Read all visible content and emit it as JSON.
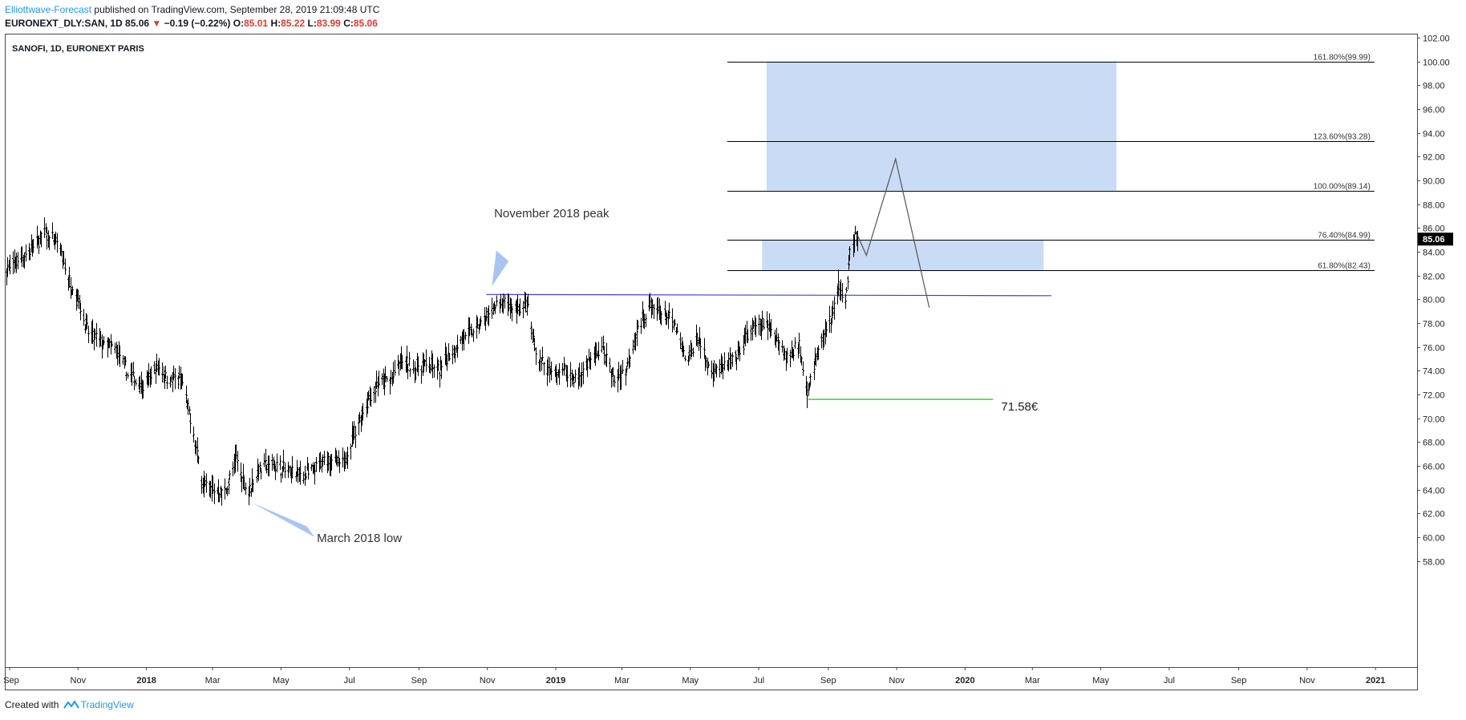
{
  "header": {
    "publisher": "Elliottwave-Forecast",
    "published_text": "published on TradingView.com, September 28, 2019 21:09:48 UTC"
  },
  "symbol_line": {
    "symbol": "EURONEXT_DLY:SAN, 1D",
    "last": "85.06",
    "change": "−0.19 (−0.22%)",
    "open_label": "O:",
    "open": "85.01",
    "high_label": "H:",
    "high": "85.22",
    "low_label": "L:",
    "low": "83.99",
    "close_label": "C:",
    "close": "85.06"
  },
  "footer": {
    "created_with": "Created with",
    "brand": "TradingView"
  },
  "colors": {
    "bars": "#000000",
    "target_box": "#c9dbf5",
    "arrow": "#a9c4ef",
    "resistance": "#3f3fd9",
    "support": "#33d633",
    "fib_line": "#000000",
    "price_tag_bg": "#000000"
  },
  "chart_data": {
    "type": "ohlc",
    "title": "SANOFI, 1D, EURONEXT PARIS",
    "ylim": [
      57,
      103
    ],
    "y_ticks": [
      "102.00",
      "100.00",
      "98.00",
      "96.00",
      "94.00",
      "92.00",
      "90.00",
      "88.00",
      "86.00",
      "84.00",
      "82.00",
      "80.00",
      "78.00",
      "76.00",
      "74.00",
      "72.00",
      "70.00",
      "68.00",
      "66.00",
      "64.00",
      "62.00",
      "60.00",
      "58.00"
    ],
    "x_ticks": [
      {
        "label": "Sep",
        "date": "2017-09-01",
        "bold": false
      },
      {
        "label": "Nov",
        "date": "2017-11-01",
        "bold": false
      },
      {
        "label": "2018",
        "date": "2018-01-01",
        "bold": true
      },
      {
        "label": "Mar",
        "date": "2018-03-01",
        "bold": false
      },
      {
        "label": "May",
        "date": "2018-05-01",
        "bold": false
      },
      {
        "label": "Jul",
        "date": "2018-07-01",
        "bold": false
      },
      {
        "label": "Sep",
        "date": "2018-09-01",
        "bold": false
      },
      {
        "label": "Nov",
        "date": "2018-11-01",
        "bold": false
      },
      {
        "label": "2019",
        "date": "2019-01-01",
        "bold": true
      },
      {
        "label": "Mar",
        "date": "2019-03-01",
        "bold": false
      },
      {
        "label": "May",
        "date": "2019-05-01",
        "bold": false
      },
      {
        "label": "Jul",
        "date": "2019-07-01",
        "bold": false
      },
      {
        "label": "Sep",
        "date": "2019-09-01",
        "bold": false
      },
      {
        "label": "Nov",
        "date": "2019-11-01",
        "bold": false
      },
      {
        "label": "2020",
        "date": "2020-01-01",
        "bold": true
      },
      {
        "label": "Mar",
        "date": "2020-03-01",
        "bold": false
      },
      {
        "label": "May",
        "date": "2020-05-01",
        "bold": false
      },
      {
        "label": "Jul",
        "date": "2020-07-01",
        "bold": false
      },
      {
        "label": "Sep",
        "date": "2020-09-01",
        "bold": false
      },
      {
        "label": "Nov",
        "date": "2020-11-01",
        "bold": false
      },
      {
        "label": "2021",
        "date": "2021-01-01",
        "bold": true
      }
    ],
    "price_path": [
      [
        "2017-08-29",
        82.5
      ],
      [
        "2017-09-08",
        83.2
      ],
      [
        "2017-09-22",
        84.3
      ],
      [
        "2017-10-02",
        85.6
      ],
      [
        "2017-10-14",
        84.7
      ],
      [
        "2017-10-24",
        81.5
      ],
      [
        "2017-10-31",
        80.3
      ],
      [
        "2017-11-10",
        77.2
      ],
      [
        "2017-11-22",
        76.3
      ],
      [
        "2017-12-05",
        75.8
      ],
      [
        "2017-12-15",
        73.8
      ],
      [
        "2017-12-29",
        72.6
      ],
      [
        "2018-01-10",
        74.3
      ],
      [
        "2018-01-22",
        73.2
      ],
      [
        "2018-02-01",
        73.3
      ],
      [
        "2018-02-10",
        69.4
      ],
      [
        "2018-02-20",
        64.5
      ],
      [
        "2018-03-01",
        64.0
      ],
      [
        "2018-03-12",
        63.8
      ],
      [
        "2018-03-22",
        66.6
      ],
      [
        "2018-04-01",
        63.7
      ],
      [
        "2018-04-12",
        65.8
      ],
      [
        "2018-04-24",
        66.2
      ],
      [
        "2018-05-08",
        65.5
      ],
      [
        "2018-05-20",
        65.2
      ],
      [
        "2018-05-30",
        65.6
      ],
      [
        "2018-06-12",
        66.7
      ],
      [
        "2018-06-24",
        65.9
      ],
      [
        "2018-07-03",
        68.2
      ],
      [
        "2018-07-14",
        70.9
      ],
      [
        "2018-07-26",
        72.9
      ],
      [
        "2018-08-06",
        73.1
      ],
      [
        "2018-08-16",
        74.8
      ],
      [
        "2018-08-28",
        74.2
      ],
      [
        "2018-09-08",
        74.6
      ],
      [
        "2018-09-18",
        74.0
      ],
      [
        "2018-09-28",
        75.3
      ],
      [
        "2018-10-10",
        76.8
      ],
      [
        "2018-10-22",
        77.5
      ],
      [
        "2018-10-31",
        78.4
      ],
      [
        "2018-11-06",
        79.3
      ],
      [
        "2018-11-16",
        79.6
      ],
      [
        "2018-11-28",
        79.2
      ],
      [
        "2018-12-06",
        79.5
      ],
      [
        "2018-12-14",
        75.5
      ],
      [
        "2018-12-26",
        73.8
      ],
      [
        "2019-01-08",
        74.0
      ],
      [
        "2019-01-20",
        73.2
      ],
      [
        "2019-01-30",
        74.8
      ],
      [
        "2019-02-12",
        75.8
      ],
      [
        "2019-02-22",
        73.2
      ],
      [
        "2019-03-04",
        74.0
      ],
      [
        "2019-03-15",
        77.6
      ],
      [
        "2019-03-26",
        79.4
      ],
      [
        "2019-04-06",
        78.8
      ],
      [
        "2019-04-17",
        77.8
      ],
      [
        "2019-04-27",
        74.6
      ],
      [
        "2019-05-08",
        76.9
      ],
      [
        "2019-05-18",
        74.0
      ],
      [
        "2019-05-30",
        74.3
      ],
      [
        "2019-06-10",
        74.9
      ],
      [
        "2019-06-22",
        77.2
      ],
      [
        "2019-07-03",
        77.9
      ],
      [
        "2019-07-14",
        77.4
      ],
      [
        "2019-07-26",
        75.1
      ],
      [
        "2019-08-06",
        76.2
      ],
      [
        "2019-08-13",
        72.3
      ],
      [
        "2019-08-20",
        74.7
      ],
      [
        "2019-08-28",
        77.1
      ],
      [
        "2019-09-04",
        78.5
      ],
      [
        "2019-09-10",
        81.0
      ],
      [
        "2019-09-16",
        80.1
      ],
      [
        "2019-09-20",
        83.9
      ],
      [
        "2019-09-26",
        85.2
      ],
      [
        "2019-09-27",
        85.06
      ]
    ],
    "projection": [
      [
        "2019-09-27",
        85.4
      ],
      [
        "2019-10-05",
        83.7
      ],
      [
        "2019-10-31",
        91.8
      ],
      [
        "2019-11-30",
        79.3
      ]
    ],
    "fib_levels": [
      {
        "label": "161.80%(99.99)",
        "price": 99.99
      },
      {
        "label": "123.60%(93.28)",
        "price": 93.28
      },
      {
        "label": "100.00%(89.14)",
        "price": 89.14
      },
      {
        "label": "76.40%(84.99)",
        "price": 84.99
      },
      {
        "label": "61.80%(82.43)",
        "price": 82.43
      }
    ],
    "fib_start_date": "2019-06-03",
    "fib_end_date": "2020-12-31",
    "target_boxes": [
      {
        "x0": "2019-07-08",
        "x1": "2020-05-15",
        "y0": 89.14,
        "y1": 99.99
      },
      {
        "x0": "2019-07-04",
        "x1": "2020-03-11",
        "y0": 82.43,
        "y1": 84.99
      }
    ],
    "resistance_line": {
      "x0": "2018-10-31",
      "x1": "2020-03-18",
      "y0": 80.4,
      "y1": 80.3
    },
    "support_line": {
      "x0": "2019-08-14",
      "x1": "2020-01-26",
      "y": 71.58
    },
    "support_label": "71.58€",
    "last_price_tag": "85.06",
    "annotations": [
      {
        "id": "nov-peak",
        "text": "November 2018 peak",
        "date": "2018-11-07",
        "price": 86.9,
        "arrow_tip": [
          "2018-11-05",
          81.1
        ],
        "arrow_base_a": [
          "2018-11-09",
          84.1
        ],
        "arrow_base_b": [
          "2018-11-20",
          83.2
        ]
      },
      {
        "id": "mar-low",
        "text": "March 2018 low",
        "date": "2018-06-02",
        "price": 59.6,
        "arrow_tip": [
          "2018-04-05",
          62.9
        ],
        "arrow_base_a": [
          "2018-05-24",
          60.9
        ],
        "arrow_base_b": [
          "2018-05-31",
          60.0
        ]
      }
    ]
  }
}
